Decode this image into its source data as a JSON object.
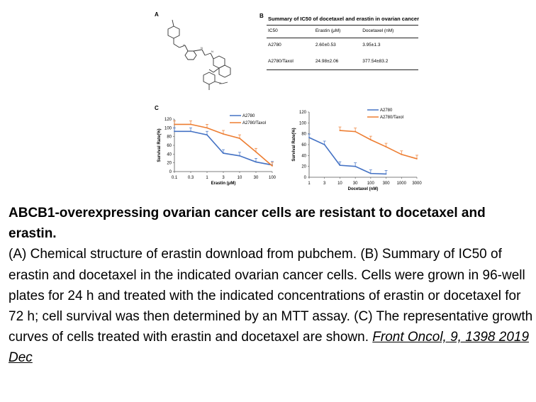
{
  "panels": {
    "a": "A",
    "b": "B",
    "c": "C"
  },
  "table": {
    "title": "Summary of IC50 of docetaxel  and erastin in ovarian cancer",
    "headers": [
      "IC50",
      "Erastin (μM)",
      "Docetaxel (nM)"
    ],
    "rows": [
      [
        "A2780",
        "2.60±0.53",
        "3.95±1.3"
      ],
      [
        "A2780/Taxol",
        "24.98±2.06",
        "377.54±83.2"
      ]
    ]
  },
  "chart_data": [
    {
      "type": "line",
      "x": [
        0.1,
        0.3,
        1,
        3,
        10,
        30,
        100
      ],
      "x_tick_labels": [
        "0.1",
        "0.3",
        "1",
        "3",
        "10",
        "30",
        "100"
      ],
      "xlabel": "Erastin (μM)",
      "ylabel": "Survival Rate(%)",
      "ylim": [
        0,
        120
      ],
      "y_ticks": [
        "0",
        "20",
        "40",
        "60",
        "80",
        "100",
        "120"
      ],
      "series": [
        {
          "name": "A2780",
          "color": "#4472c4",
          "values": [
            92,
            92,
            84,
            42,
            36,
            22,
            15
          ]
        },
        {
          "name": "A2780/Taxol",
          "color": "#ed7d31",
          "values": [
            108,
            108,
            100,
            86,
            76,
            45,
            13
          ]
        }
      ],
      "legend": "top-right"
    },
    {
      "type": "line",
      "x": [
        1,
        3,
        10,
        30,
        100,
        300,
        1000,
        3000
      ],
      "x_tick_labels": [
        "1",
        "3",
        "10",
        "30",
        "100",
        "300",
        "1000",
        "3000"
      ],
      "xlabel": "Docetaxel (nM)",
      "ylabel": "Survival Rate(%)",
      "ylim": [
        0,
        120
      ],
      "y_ticks": [
        "0",
        "20",
        "40",
        "60",
        "80",
        "100",
        "120"
      ],
      "series": [
        {
          "name": "A2780",
          "color": "#4472c4",
          "points": [
            [
              1,
              73
            ],
            [
              3,
              60
            ],
            [
              10,
              22
            ],
            [
              30,
              20
            ],
            [
              100,
              7
            ],
            [
              300,
              6
            ]
          ]
        },
        {
          "name": "A2780/Taxol",
          "color": "#ed7d31",
          "points": [
            [
              10,
              86
            ],
            [
              30,
              84
            ],
            [
              100,
              69
            ],
            [
              300,
              56
            ],
            [
              1000,
              42
            ],
            [
              3000,
              34
            ]
          ]
        }
      ],
      "legend": "top-right"
    }
  ],
  "caption": {
    "title": "ABCB1-overexpressing ovarian cancer cells are resistant to docetaxel and erastin.",
    "body": "(A) Chemical structure of erastin download from pubchem. (B) Summary of IC50 of erastin and docetaxel in the indicated ovarian cancer cells. Cells were grown in 96-well plates for 24 h and treated with the indicated concentrations of erastin or docetaxel for 72 h; cell survival was then determined by an MTT assay. (C) The representative growth curves of cells treated with erastin and docetaxel are shown.",
    "citation": "Front Oncol, 9, 1398  2019 Dec"
  }
}
